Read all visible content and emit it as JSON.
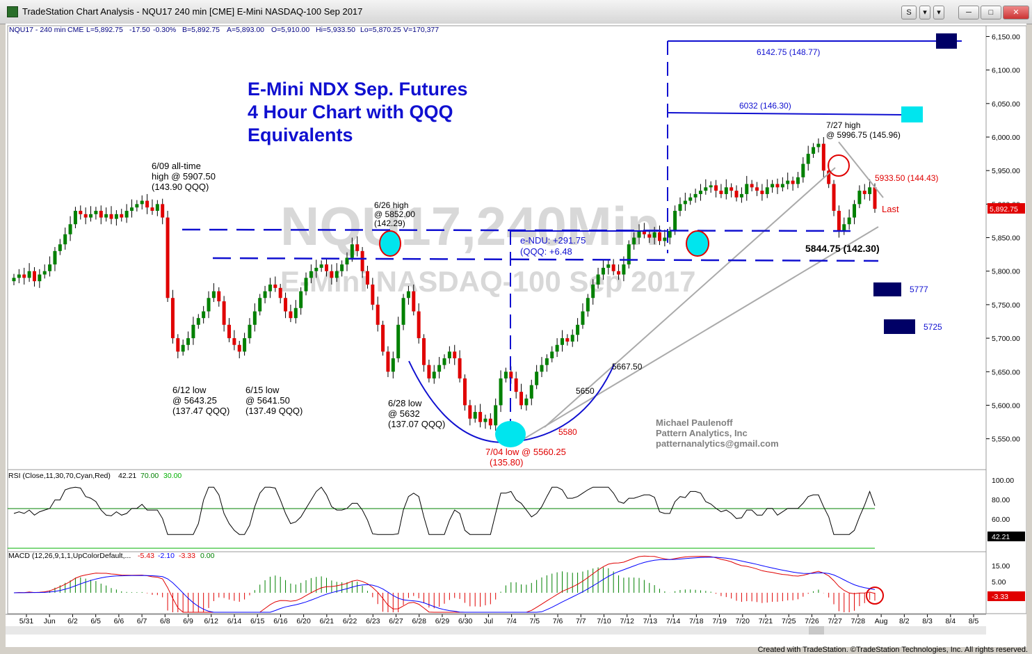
{
  "window": {
    "title": "TradeStation Chart Analysis - NQU17 240 min [CME] E-Mini NASDAQ-100 Sep 2017",
    "btn_s": "S",
    "btn_menu": "▾"
  },
  "header": {
    "symbol": "NQU17 - 240 min",
    "exchange": "CME",
    "last": "L=5,892.75",
    "change": "-17.50",
    "change_pct": "-0.30%",
    "bid": "B=5,892.75",
    "ask": "A=5,893.00",
    "open": "O=5,910.00",
    "high": "Hi=5,933.50",
    "low": "Lo=5,870.25",
    "volume": "V=170,377"
  },
  "watermark": {
    "line1": "NQU17,240Min",
    "line2": "E-Mini NASDAQ-100 Sep 2017"
  },
  "annotations": {
    "title1": "E-Mini NDX Sep. Futures",
    "title2": "4 Hour Chart with QQQ",
    "title3": "Equivalents",
    "ath1": "6/09 all-time",
    "ath2": "high @ 5907.50",
    "ath3": "(143.90 QQQ)",
    "h626_1": "6/26 high",
    "h626_2": "@ 5852.00",
    "h626_3": "(142.29)",
    "l612_1": "6/12 low",
    "l612_2": "@ 5643.25",
    "l612_3": "(137.47 QQQ)",
    "l615_1": "6/15 low",
    "l615_2": "@ 5641.50",
    "l615_3": "(137.49 QQQ)",
    "l628_1": "6/28 low",
    "l628_2": "@ 5632",
    "l628_3": "(137.07 QQQ)",
    "l704_1": "7/04 low @ 5560.25",
    "l704_2": "(135.80)",
    "v5580": "5580",
    "v5650": "5650",
    "v5667": "5667.50",
    "endu1": "e-NDU: +291.75",
    "endu2": "(QQQ: +6.48",
    "t6142": "6142.75 (148.77)",
    "t6032": "6032 (146.30)",
    "h727_1": "7/27 high",
    "h727_2": "@ 5996.75 (145.96)",
    "r5933": "5933.50 (144.43)",
    "last": "Last",
    "s5844": "5844.75 (142.30)",
    "s5777": "5777",
    "s5725": "5725",
    "author1": "Michael Paulenoff",
    "author2": "Pattern Analytics, Inc",
    "author3": "patternanalytics@gmail.com"
  },
  "price_axis": {
    "ticks": [
      "6,150.00",
      "6,100.00",
      "6,050.00",
      "6,000.00",
      "5,950.00",
      "5,900.00",
      "5,850.00",
      "5,800.00",
      "5,750.00",
      "5,700.00",
      "5,650.00",
      "5,600.00",
      "5,550.00"
    ],
    "last_tag": "5,892.75"
  },
  "rsi": {
    "label": "RSI (Close,11,30,70,Cyan,Red)",
    "value": "42.21",
    "ob": "70.00",
    "os": "30.00",
    "ticks": [
      "100.00",
      "80.00",
      "60.00"
    ],
    "tag": "42.21"
  },
  "macd": {
    "label": "MACD (12,26,9,1,1,UpColorDefault,...",
    "v1": "-5.43",
    "v2": "-2.10",
    "v3": "-3.33",
    "v4": "0.00",
    "ticks": [
      "15.00",
      "5.00"
    ],
    "tag": "-3.33"
  },
  "date_axis": [
    "5/31",
    "Jun",
    "6/2",
    "6/5",
    "6/6",
    "6/7",
    "6/8",
    "6/9",
    "6/12",
    "6/14",
    "6/15",
    "6/16",
    "6/20",
    "6/21",
    "6/22",
    "6/23",
    "6/27",
    "6/28",
    "6/29",
    "6/30",
    "Jul",
    "7/4",
    "7/5",
    "7/6",
    "7/7",
    "7/10",
    "7/12",
    "7/13",
    "7/14",
    "7/18",
    "7/19",
    "7/20",
    "7/21",
    "7/25",
    "7/26",
    "7/27",
    "7/28",
    "Aug",
    "8/2",
    "8/3",
    "8/4",
    "8/5"
  ],
  "footer": "Created with TradeStation. ©TradeStation Technologies, Inc. All rights reserved.",
  "colors": {
    "up": "#008000",
    "down": "#e00000",
    "annot_blue": "#1010d0",
    "red": "#e00000",
    "navy": "#000066",
    "cyan": "#00e5ee"
  },
  "chart_data": {
    "type": "candlestick",
    "symbol": "NQU17",
    "interval": "240 min",
    "ylim": [
      5505,
      6165
    ],
    "closes": [
      5790,
      5795,
      5790,
      5800,
      5785,
      5795,
      5800,
      5810,
      5830,
      5840,
      5855,
      5870,
      5890,
      5885,
      5880,
      5885,
      5890,
      5880,
      5885,
      5878,
      5885,
      5880,
      5890,
      5895,
      5900,
      5905,
      5895,
      5890,
      5900,
      5880,
      5760,
      5700,
      5680,
      5690,
      5700,
      5720,
      5730,
      5740,
      5760,
      5770,
      5755,
      5720,
      5700,
      5690,
      5680,
      5700,
      5720,
      5740,
      5760,
      5770,
      5780,
      5775,
      5760,
      5740,
      5730,
      5745,
      5770,
      5790,
      5800,
      5805,
      5810,
      5800,
      5790,
      5800,
      5810,
      5820,
      5840,
      5830,
      5800,
      5780,
      5750,
      5720,
      5680,
      5650,
      5670,
      5720,
      5760,
      5770,
      5740,
      5700,
      5660,
      5640,
      5650,
      5660,
      5670,
      5680,
      5670,
      5640,
      5600,
      5580,
      5590,
      5575,
      5580,
      5570,
      5600,
      5640,
      5650,
      5640,
      5620,
      5600,
      5610,
      5630,
      5650,
      5660,
      5670,
      5680,
      5690,
      5700,
      5695,
      5705,
      5720,
      5740,
      5760,
      5780,
      5795,
      5805,
      5810,
      5800,
      5795,
      5810,
      5840,
      5850,
      5860,
      5855,
      5850,
      5858,
      5845,
      5850,
      5860,
      5890,
      5900,
      5905,
      5910,
      5915,
      5920,
      5925,
      5928,
      5920,
      5915,
      5925,
      5920,
      5910,
      5915,
      5930,
      5925,
      5920,
      5915,
      5925,
      5930,
      5925,
      5930,
      5935,
      5930,
      5940,
      5960,
      5975,
      5985,
      5990,
      5950,
      5930,
      5890,
      5860,
      5870,
      5880,
      5900,
      5920,
      5915,
      5925,
      5893
    ]
  }
}
